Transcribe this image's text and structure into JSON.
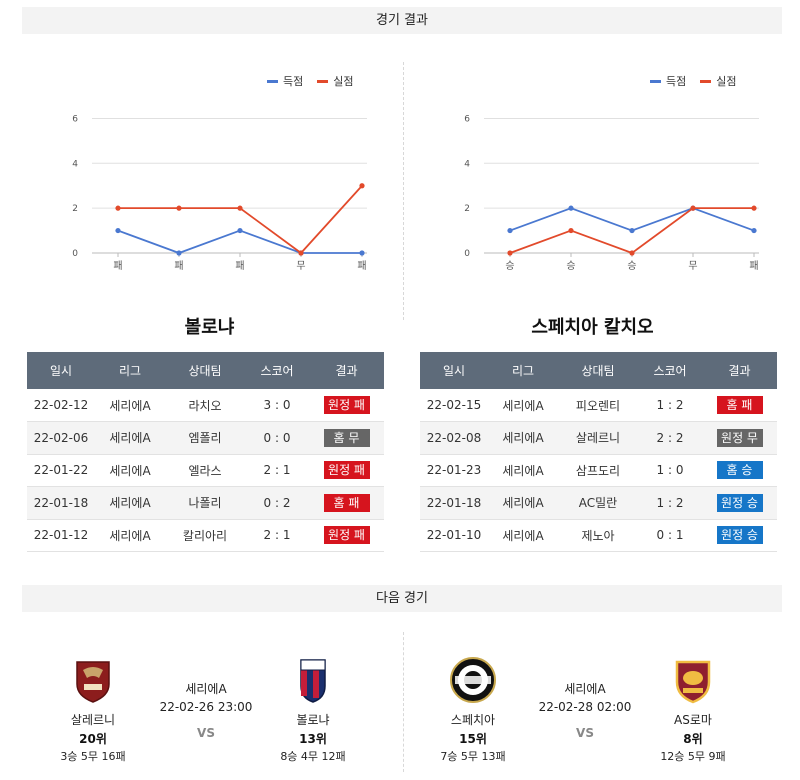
{
  "sections": {
    "results_title": "경기 결과",
    "next_title": "다음 경기"
  },
  "legend": {
    "scored": "득점",
    "conceded": "실점"
  },
  "colors": {
    "scored": "#4a78d0",
    "conceded": "#e24a2b",
    "loss": "#d6141e",
    "draw": "#666666",
    "win": "#1676c8",
    "header": "#5e6b7a"
  },
  "table_headers": [
    "일시",
    "리그",
    "상대팀",
    "스코어",
    "결과"
  ],
  "chart_data": [
    {
      "type": "line",
      "categories": [
        "패",
        "패",
        "패",
        "무",
        "패"
      ],
      "series": [
        {
          "name": "득점",
          "values": [
            1,
            0,
            1,
            0,
            0
          ]
        },
        {
          "name": "실점",
          "values": [
            2,
            2,
            2,
            0,
            3
          ]
        }
      ],
      "yticks": [
        0,
        2,
        4,
        6
      ],
      "ylim": [
        0,
        6.6
      ],
      "legend_position": "top-right",
      "grid": true
    },
    {
      "type": "line",
      "categories": [
        "승",
        "승",
        "승",
        "무",
        "패"
      ],
      "series": [
        {
          "name": "득점",
          "values": [
            1,
            2,
            1,
            2,
            1
          ]
        },
        {
          "name": "실점",
          "values": [
            0,
            1,
            0,
            2,
            2
          ]
        }
      ],
      "yticks": [
        0,
        2,
        4,
        6
      ],
      "ylim": [
        0,
        6.6
      ],
      "legend_position": "top-right",
      "grid": true
    }
  ],
  "teams": [
    {
      "name": "볼로냐",
      "results": [
        {
          "date": "22-02-12",
          "league": "세리에A",
          "opponent": "라치오",
          "score": "3 : 0",
          "result": "원정 패",
          "type": "loss"
        },
        {
          "date": "22-02-06",
          "league": "세리에A",
          "opponent": "엠폴리",
          "score": "0 : 0",
          "result": "홈 무",
          "type": "draw"
        },
        {
          "date": "22-01-22",
          "league": "세리에A",
          "opponent": "엘라스",
          "score": "2 : 1",
          "result": "원정 패",
          "type": "loss"
        },
        {
          "date": "22-01-18",
          "league": "세리에A",
          "opponent": "나폴리",
          "score": "0 : 2",
          "result": "홈 패",
          "type": "loss"
        },
        {
          "date": "22-01-12",
          "league": "세리에A",
          "opponent": "칼리아리",
          "score": "2 : 1",
          "result": "원정 패",
          "type": "loss"
        }
      ]
    },
    {
      "name": "스페치아 칼치오",
      "results": [
        {
          "date": "22-02-15",
          "league": "세리에A",
          "opponent": "피오렌티",
          "score": "1 : 2",
          "result": "홈 패",
          "type": "loss"
        },
        {
          "date": "22-02-08",
          "league": "세리에A",
          "opponent": "살레르니",
          "score": "2 : 2",
          "result": "원정 무",
          "type": "draw"
        },
        {
          "date": "22-01-23",
          "league": "세리에A",
          "opponent": "삼프도리",
          "score": "1 : 0",
          "result": "홈 승",
          "type": "win"
        },
        {
          "date": "22-01-18",
          "league": "세리에A",
          "opponent": "AC밀란",
          "score": "1 : 2",
          "result": "원정 승",
          "type": "win"
        },
        {
          "date": "22-01-10",
          "league": "세리에A",
          "opponent": "제노아",
          "score": "0 : 1",
          "result": "원정 승",
          "type": "win"
        }
      ]
    }
  ],
  "next_matches": [
    {
      "league": "세리에A",
      "datetime": "22-02-26 23:00",
      "vs": "VS",
      "home": {
        "name": "살레르니",
        "rank": "20위",
        "record": "3승 5무 16패",
        "logo_icon": "salernitana-crest-icon"
      },
      "away": {
        "name": "볼로냐",
        "rank": "13위",
        "record": "8승 4무 12패",
        "logo_icon": "bologna-crest-icon"
      }
    },
    {
      "league": "세리에A",
      "datetime": "22-02-28 02:00",
      "vs": "VS",
      "home": {
        "name": "스페치아",
        "rank": "15위",
        "record": "7승 5무 13패",
        "logo_icon": "spezia-crest-icon"
      },
      "away": {
        "name": "AS로마",
        "rank": "8위",
        "record": "12승 5무 9패",
        "logo_icon": "roma-crest-icon"
      }
    }
  ]
}
